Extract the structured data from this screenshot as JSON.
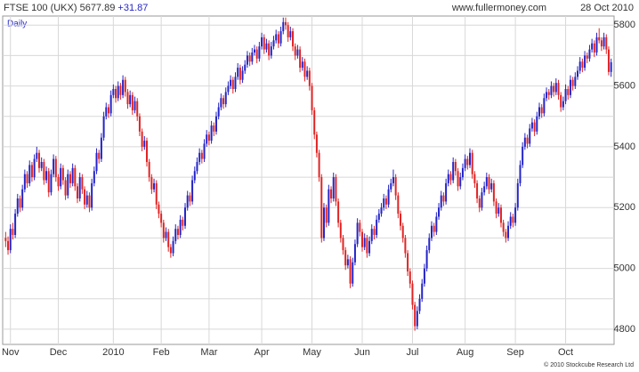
{
  "chart_data": {
    "type": "candlestick",
    "title": "FTSE 100 (UKX) 5677.89",
    "change": "+31.87",
    "source": "www.fullermoney.com",
    "date": "28 Oct 2010",
    "period": "Daily",
    "copyright": "© 2010 Stockcube Research Ltd",
    "up_color": "#2424c8",
    "down_color": "#e02424",
    "grid": true,
    "ylim": [
      4750,
      5830
    ],
    "yticks": [
      4800,
      5000,
      5200,
      5400,
      5600,
      5800
    ],
    "minor_yticks": [
      4900,
      5100,
      5300,
      5500,
      5700
    ],
    "xticks": [
      {
        "value": 2,
        "label": "Nov"
      },
      {
        "value": 22,
        "label": "Dec"
      },
      {
        "value": 45,
        "label": "2010"
      },
      {
        "value": 65,
        "label": "Feb"
      },
      {
        "value": 85,
        "label": "Mar"
      },
      {
        "value": 107,
        "label": "Apr"
      },
      {
        "value": 128,
        "label": "May"
      },
      {
        "value": 149,
        "label": "Jun"
      },
      {
        "value": 170,
        "label": "Jul"
      },
      {
        "value": 192,
        "label": "Aug"
      },
      {
        "value": 213,
        "label": "Sep"
      },
      {
        "value": 234,
        "label": "Oct"
      }
    ],
    "ohlc": [
      [
        5100,
        5120,
        5070,
        5090
      ],
      [
        5090,
        5105,
        5045,
        5060
      ],
      [
        5060,
        5145,
        5050,
        5130
      ],
      [
        5130,
        5150,
        5095,
        5110
      ],
      [
        5110,
        5195,
        5100,
        5180
      ],
      [
        5180,
        5245,
        5170,
        5230
      ],
      [
        5230,
        5240,
        5185,
        5200
      ],
      [
        5200,
        5275,
        5190,
        5260
      ],
      [
        5260,
        5325,
        5250,
        5310
      ],
      [
        5310,
        5320,
        5265,
        5280
      ],
      [
        5280,
        5355,
        5270,
        5340
      ],
      [
        5340,
        5350,
        5285,
        5300
      ],
      [
        5300,
        5375,
        5290,
        5360
      ],
      [
        5360,
        5400,
        5350,
        5380
      ],
      [
        5380,
        5390,
        5315,
        5330
      ],
      [
        5330,
        5365,
        5320,
        5350
      ],
      [
        5350,
        5360,
        5275,
        5290
      ],
      [
        5290,
        5335,
        5280,
        5320
      ],
      [
        5320,
        5330,
        5235,
        5250
      ],
      [
        5250,
        5325,
        5240,
        5310
      ],
      [
        5310,
        5375,
        5300,
        5360
      ],
      [
        5360,
        5370,
        5285,
        5300
      ],
      [
        5300,
        5310,
        5255,
        5270
      ],
      [
        5270,
        5345,
        5260,
        5330
      ],
      [
        5330,
        5340,
        5275,
        5290
      ],
      [
        5290,
        5300,
        5225,
        5240
      ],
      [
        5240,
        5325,
        5230,
        5310
      ],
      [
        5310,
        5320,
        5265,
        5280
      ],
      [
        5280,
        5345,
        5270,
        5330
      ],
      [
        5330,
        5340,
        5255,
        5270
      ],
      [
        5270,
        5280,
        5215,
        5230
      ],
      [
        5230,
        5315,
        5220,
        5300
      ],
      [
        5300,
        5310,
        5245,
        5260
      ],
      [
        5260,
        5270,
        5195,
        5210
      ],
      [
        5210,
        5255,
        5200,
        5240
      ],
      [
        5240,
        5250,
        5185,
        5200
      ],
      [
        5200,
        5295,
        5190,
        5280
      ],
      [
        5280,
        5335,
        5270,
        5320
      ],
      [
        5320,
        5395,
        5310,
        5380
      ],
      [
        5380,
        5390,
        5345,
        5360
      ],
      [
        5360,
        5445,
        5350,
        5430
      ],
      [
        5430,
        5515,
        5420,
        5500
      ],
      [
        5500,
        5545,
        5490,
        5530
      ],
      [
        5530,
        5540,
        5495,
        5510
      ],
      [
        5510,
        5585,
        5500,
        5570
      ],
      [
        5570,
        5605,
        5560,
        5590
      ],
      [
        5590,
        5600,
        5545,
        5560
      ],
      [
        5560,
        5615,
        5550,
        5600
      ],
      [
        5600,
        5610,
        5555,
        5570
      ],
      [
        5570,
        5635,
        5560,
        5620
      ],
      [
        5620,
        5630,
        5565,
        5580
      ],
      [
        5580,
        5590,
        5525,
        5540
      ],
      [
        5540,
        5585,
        5530,
        5570
      ],
      [
        5570,
        5580,
        5505,
        5520
      ],
      [
        5520,
        5565,
        5510,
        5550
      ],
      [
        5550,
        5560,
        5485,
        5500
      ],
      [
        5500,
        5510,
        5435,
        5450
      ],
      [
        5450,
        5460,
        5385,
        5400
      ],
      [
        5400,
        5435,
        5390,
        5420
      ],
      [
        5420,
        5430,
        5335,
        5350
      ],
      [
        5350,
        5360,
        5285,
        5300
      ],
      [
        5300,
        5310,
        5245,
        5260
      ],
      [
        5260,
        5295,
        5250,
        5280
      ],
      [
        5280,
        5290,
        5195,
        5210
      ],
      [
        5210,
        5220,
        5165,
        5180
      ],
      [
        5180,
        5190,
        5135,
        5150
      ],
      [
        5150,
        5160,
        5085,
        5100
      ],
      [
        5100,
        5135,
        5090,
        5120
      ],
      [
        5120,
        5130,
        5055,
        5070
      ],
      [
        5070,
        5080,
        5035,
        5050
      ],
      [
        5050,
        5105,
        5040,
        5090
      ],
      [
        5090,
        5145,
        5080,
        5130
      ],
      [
        5130,
        5140,
        5095,
        5110
      ],
      [
        5110,
        5175,
        5100,
        5160
      ],
      [
        5160,
        5170,
        5125,
        5140
      ],
      [
        5140,
        5215,
        5130,
        5200
      ],
      [
        5200,
        5255,
        5190,
        5240
      ],
      [
        5240,
        5250,
        5205,
        5220
      ],
      [
        5220,
        5305,
        5210,
        5290
      ],
      [
        5290,
        5335,
        5280,
        5320
      ],
      [
        5320,
        5365,
        5310,
        5350
      ],
      [
        5350,
        5395,
        5340,
        5380
      ],
      [
        5380,
        5390,
        5345,
        5360
      ],
      [
        5360,
        5425,
        5350,
        5410
      ],
      [
        5410,
        5455,
        5400,
        5440
      ],
      [
        5440,
        5450,
        5405,
        5420
      ],
      [
        5420,
        5485,
        5410,
        5470
      ],
      [
        5470,
        5480,
        5435,
        5450
      ],
      [
        5450,
        5515,
        5440,
        5500
      ],
      [
        5500,
        5545,
        5490,
        5530
      ],
      [
        5530,
        5575,
        5520,
        5560
      ],
      [
        5560,
        5570,
        5525,
        5540
      ],
      [
        5540,
        5595,
        5530,
        5580
      ],
      [
        5580,
        5615,
        5570,
        5600
      ],
      [
        5600,
        5635,
        5590,
        5620
      ],
      [
        5620,
        5630,
        5575,
        5590
      ],
      [
        5590,
        5645,
        5580,
        5630
      ],
      [
        5630,
        5675,
        5620,
        5660
      ],
      [
        5660,
        5670,
        5605,
        5620
      ],
      [
        5620,
        5665,
        5610,
        5650
      ],
      [
        5650,
        5685,
        5640,
        5670
      ],
      [
        5670,
        5715,
        5660,
        5700
      ],
      [
        5700,
        5710,
        5665,
        5680
      ],
      [
        5680,
        5725,
        5670,
        5710
      ],
      [
        5710,
        5735,
        5700,
        5720
      ],
      [
        5720,
        5730,
        5675,
        5690
      ],
      [
        5690,
        5745,
        5680,
        5730
      ],
      [
        5730,
        5775,
        5720,
        5760
      ],
      [
        5760,
        5770,
        5705,
        5720
      ],
      [
        5720,
        5755,
        5710,
        5740
      ],
      [
        5740,
        5750,
        5685,
        5700
      ],
      [
        5700,
        5745,
        5690,
        5730
      ],
      [
        5730,
        5765,
        5720,
        5750
      ],
      [
        5750,
        5785,
        5740,
        5770
      ],
      [
        5770,
        5780,
        5725,
        5740
      ],
      [
        5740,
        5795,
        5730,
        5780
      ],
      [
        5780,
        5825,
        5770,
        5810
      ],
      [
        5810,
        5825,
        5785,
        5800
      ],
      [
        5800,
        5810,
        5745,
        5760
      ],
      [
        5760,
        5795,
        5750,
        5780
      ],
      [
        5780,
        5790,
        5715,
        5730
      ],
      [
        5730,
        5740,
        5685,
        5700
      ],
      [
        5700,
        5735,
        5690,
        5720
      ],
      [
        5720,
        5730,
        5645,
        5660
      ],
      [
        5660,
        5695,
        5650,
        5680
      ],
      [
        5680,
        5690,
        5615,
        5630
      ],
      [
        5630,
        5665,
        5620,
        5650
      ],
      [
        5650,
        5660,
        5585,
        5600
      ],
      [
        5600,
        5610,
        5505,
        5520
      ],
      [
        5520,
        5530,
        5425,
        5440
      ],
      [
        5440,
        5450,
        5365,
        5380
      ],
      [
        5380,
        5390,
        5285,
        5300
      ],
      [
        5300,
        5310,
        5085,
        5100
      ],
      [
        5100,
        5215,
        5090,
        5200
      ],
      [
        5200,
        5210,
        5135,
        5150
      ],
      [
        5150,
        5275,
        5140,
        5260
      ],
      [
        5260,
        5270,
        5215,
        5230
      ],
      [
        5230,
        5315,
        5220,
        5300
      ],
      [
        5300,
        5310,
        5205,
        5220
      ],
      [
        5220,
        5230,
        5135,
        5150
      ],
      [
        5150,
        5160,
        5085,
        5100
      ],
      [
        5100,
        5110,
        5045,
        5060
      ],
      [
        5060,
        5070,
        4995,
        5010
      ],
      [
        5010,
        5045,
        5000,
        5030
      ],
      [
        5030,
        5040,
        4935,
        4950
      ],
      [
        4950,
        5035,
        4940,
        5020
      ],
      [
        5020,
        5095,
        5010,
        5080
      ],
      [
        5080,
        5165,
        5070,
        5150
      ],
      [
        5150,
        5160,
        5105,
        5120
      ],
      [
        5120,
        5130,
        5055,
        5070
      ],
      [
        5070,
        5115,
        5060,
        5100
      ],
      [
        5100,
        5110,
        5035,
        5050
      ],
      [
        5050,
        5105,
        5040,
        5090
      ],
      [
        5090,
        5145,
        5080,
        5130
      ],
      [
        5130,
        5140,
        5095,
        5110
      ],
      [
        5110,
        5175,
        5100,
        5160
      ],
      [
        5160,
        5195,
        5150,
        5180
      ],
      [
        5180,
        5215,
        5170,
        5200
      ],
      [
        5200,
        5245,
        5190,
        5230
      ],
      [
        5230,
        5240,
        5195,
        5210
      ],
      [
        5210,
        5275,
        5200,
        5260
      ],
      [
        5260,
        5295,
        5250,
        5280
      ],
      [
        5280,
        5325,
        5270,
        5300
      ],
      [
        5300,
        5310,
        5225,
        5240
      ],
      [
        5240,
        5250,
        5165,
        5180
      ],
      [
        5180,
        5190,
        5125,
        5140
      ],
      [
        5140,
        5150,
        5085,
        5100
      ],
      [
        5100,
        5110,
        5035,
        5050
      ],
      [
        5050,
        5060,
        4975,
        4990
      ],
      [
        4990,
        5000,
        4935,
        4950
      ],
      [
        4950,
        4960,
        4865,
        4880
      ],
      [
        4880,
        4890,
        4795,
        4810
      ],
      [
        4810,
        4875,
        4800,
        4860
      ],
      [
        4860,
        4915,
        4850,
        4900
      ],
      [
        4900,
        4965,
        4890,
        4950
      ],
      [
        4950,
        5015,
        4940,
        5000
      ],
      [
        5000,
        5075,
        4990,
        5060
      ],
      [
        5060,
        5115,
        5050,
        5100
      ],
      [
        5100,
        5155,
        5090,
        5140
      ],
      [
        5140,
        5150,
        5105,
        5120
      ],
      [
        5120,
        5185,
        5110,
        5170
      ],
      [
        5170,
        5215,
        5160,
        5200
      ],
      [
        5200,
        5255,
        5190,
        5240
      ],
      [
        5240,
        5250,
        5205,
        5220
      ],
      [
        5220,
        5295,
        5210,
        5280
      ],
      [
        5280,
        5325,
        5270,
        5310
      ],
      [
        5310,
        5320,
        5275,
        5290
      ],
      [
        5290,
        5365,
        5280,
        5350
      ],
      [
        5350,
        5360,
        5305,
        5320
      ],
      [
        5320,
        5330,
        5255,
        5270
      ],
      [
        5270,
        5315,
        5260,
        5300
      ],
      [
        5300,
        5345,
        5290,
        5330
      ],
      [
        5330,
        5375,
        5320,
        5360
      ],
      [
        5360,
        5370,
        5325,
        5340
      ],
      [
        5340,
        5395,
        5330,
        5380
      ],
      [
        5380,
        5390,
        5295,
        5310
      ],
      [
        5310,
        5320,
        5265,
        5280
      ],
      [
        5280,
        5290,
        5215,
        5230
      ],
      [
        5230,
        5240,
        5185,
        5200
      ],
      [
        5200,
        5265,
        5190,
        5250
      ],
      [
        5250,
        5285,
        5240,
        5270
      ],
      [
        5270,
        5315,
        5260,
        5300
      ],
      [
        5300,
        5310,
        5245,
        5260
      ],
      [
        5260,
        5295,
        5250,
        5280
      ],
      [
        5280,
        5290,
        5205,
        5220
      ],
      [
        5220,
        5230,
        5165,
        5180
      ],
      [
        5180,
        5215,
        5170,
        5200
      ],
      [
        5200,
        5210,
        5135,
        5150
      ],
      [
        5150,
        5160,
        5105,
        5120
      ],
      [
        5120,
        5130,
        5085,
        5100
      ],
      [
        5100,
        5155,
        5090,
        5140
      ],
      [
        5140,
        5185,
        5130,
        5170
      ],
      [
        5170,
        5180,
        5135,
        5150
      ],
      [
        5150,
        5215,
        5140,
        5200
      ],
      [
        5200,
        5295,
        5190,
        5280
      ],
      [
        5280,
        5355,
        5270,
        5340
      ],
      [
        5340,
        5415,
        5330,
        5400
      ],
      [
        5400,
        5445,
        5390,
        5430
      ],
      [
        5430,
        5440,
        5395,
        5410
      ],
      [
        5410,
        5475,
        5400,
        5460
      ],
      [
        5460,
        5495,
        5450,
        5480
      ],
      [
        5480,
        5490,
        5435,
        5450
      ],
      [
        5450,
        5515,
        5440,
        5500
      ],
      [
        5500,
        5545,
        5490,
        5530
      ],
      [
        5530,
        5540,
        5495,
        5510
      ],
      [
        5510,
        5575,
        5500,
        5560
      ],
      [
        5560,
        5595,
        5550,
        5580
      ],
      [
        5580,
        5590,
        5555,
        5570
      ],
      [
        5570,
        5615,
        5560,
        5600
      ],
      [
        5600,
        5610,
        5565,
        5580
      ],
      [
        5580,
        5625,
        5570,
        5610
      ],
      [
        5610,
        5620,
        5555,
        5570
      ],
      [
        5570,
        5580,
        5515,
        5530
      ],
      [
        5530,
        5565,
        5520,
        5550
      ],
      [
        5550,
        5605,
        5540,
        5590
      ],
      [
        5590,
        5600,
        5555,
        5570
      ],
      [
        5570,
        5635,
        5560,
        5620
      ],
      [
        5620,
        5630,
        5585,
        5600
      ],
      [
        5600,
        5645,
        5590,
        5630
      ],
      [
        5630,
        5665,
        5620,
        5650
      ],
      [
        5650,
        5695,
        5640,
        5680
      ],
      [
        5680,
        5690,
        5645,
        5660
      ],
      [
        5660,
        5715,
        5650,
        5700
      ],
      [
        5700,
        5710,
        5675,
        5690
      ],
      [
        5690,
        5735,
        5680,
        5720
      ],
      [
        5720,
        5755,
        5710,
        5740
      ],
      [
        5740,
        5750,
        5695,
        5710
      ],
      [
        5710,
        5775,
        5700,
        5760
      ],
      [
        5760,
        5790,
        5740,
        5750
      ],
      [
        5750,
        5760,
        5715,
        5730
      ],
      [
        5730,
        5775,
        5720,
        5760
      ],
      [
        5760,
        5770,
        5705,
        5720
      ],
      [
        5720,
        5730,
        5635,
        5646.02
      ],
      [
        5646.02,
        5690,
        5630,
        5677.89
      ]
    ]
  }
}
